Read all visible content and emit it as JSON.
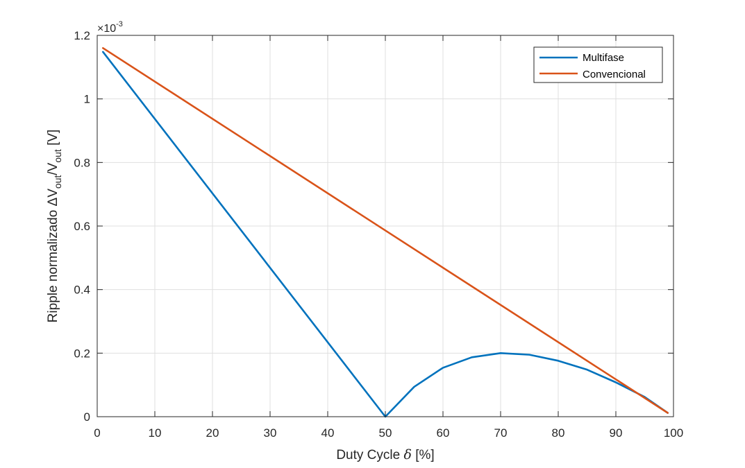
{
  "chart_data": {
    "type": "line",
    "xlabel": "Duty Cycle δ [%]",
    "xlabel_parts": {
      "main": "Duty Cycle ",
      "symbol": "δ",
      "unit": " [%]"
    },
    "ylabel": "Ripple normalizado ΔVout/Vout [V]",
    "ylabel_parts": {
      "main": "Ripple normalizado ",
      "delta": "ΔV",
      "sub1": "out",
      "slash": "/V",
      "sub2": "out",
      "unit": " [V]"
    },
    "y_exponent": {
      "base": "×10",
      "power": "-3"
    },
    "xlim": [
      0,
      100
    ],
    "ylim": [
      0,
      1.2
    ],
    "x_ticks": [
      0,
      10,
      20,
      30,
      40,
      50,
      60,
      70,
      80,
      90,
      100
    ],
    "y_ticks": [
      0,
      0.2,
      0.4,
      0.6,
      0.8,
      1,
      1.2
    ],
    "y_tick_labels": [
      "0",
      "0.2",
      "0.4",
      "0.6",
      "0.8",
      "1",
      "1.2"
    ],
    "grid": true,
    "legend_position": "top-right",
    "series": [
      {
        "name": "Multifase",
        "color": "#0072BD",
        "x": [
          1,
          50,
          55,
          60,
          65,
          70,
          75,
          80,
          85,
          90,
          95,
          99
        ],
        "y": [
          1.148,
          0.0,
          0.094,
          0.154,
          0.187,
          0.2,
          0.195,
          0.176,
          0.148,
          0.108,
          0.062,
          0.012
        ]
      },
      {
        "name": "Convencional",
        "color": "#D95319",
        "x": [
          1,
          99
        ],
        "y": [
          1.16,
          0.012
        ]
      }
    ]
  }
}
